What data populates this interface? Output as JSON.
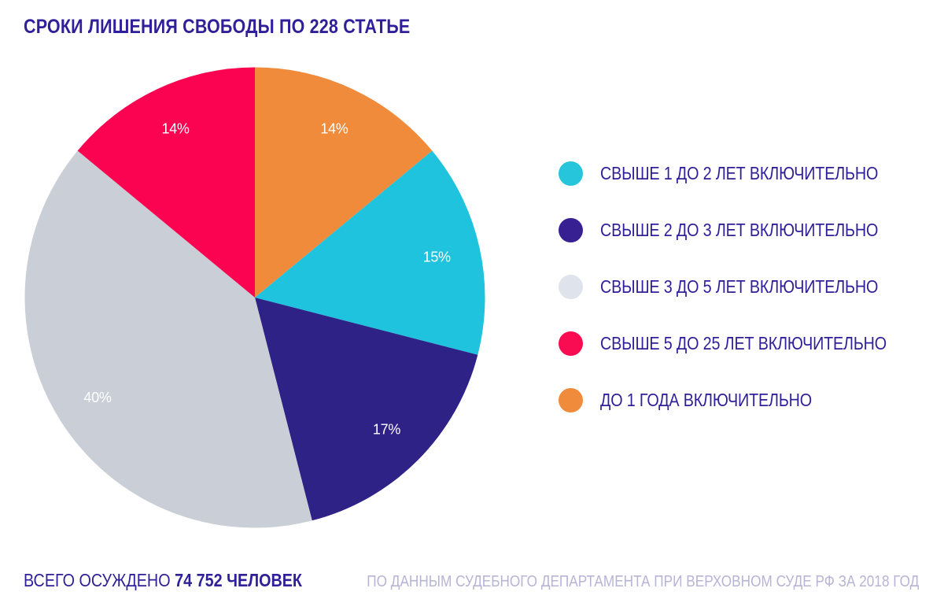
{
  "title": "СРОКИ ЛИШЕНИЯ СВОБОДЫ ПО 228 СТАТЬЕ",
  "chart_data": {
    "type": "pie",
    "title": "СРОКИ ЛИШЕНИЯ СВОБОДЫ ПО 228 СТАТЬЕ",
    "start_angle_deg": 0,
    "direction": "clockwise",
    "units": "%",
    "slices": [
      {
        "label": "ДО 1 ГОДА ВКЛЮЧИТЕЛЬНО",
        "value": 14,
        "display": "14%",
        "color": "#ef8b3b"
      },
      {
        "label": "СВЫШЕ 1 ДО 2 ЛЕТ ВКЛЮЧИТЕЛЬНО",
        "value": 15,
        "display": "15%",
        "color": "#20c3dd"
      },
      {
        "label": "СВЫШЕ 2 ДО 3 ЛЕТ ВКЛЮЧИТЕЛЬНО",
        "value": 17,
        "display": "17%",
        "color": "#2e2286"
      },
      {
        "label": "СВЫШЕ 3 ДО 5 ЛЕТ ВКЛЮЧИТЕЛЬНО",
        "value": 40,
        "display": "40%",
        "color": "#c9ced7"
      },
      {
        "label": "СВЫШЕ 5 ДО 25 ЛЕТ ВКЛЮЧИТЕЛЬНО",
        "value": 14,
        "display": "14%",
        "color": "#fb0351"
      }
    ],
    "slice_label_color": "#ffffff",
    "slice_label_radius_ratio": 0.81,
    "legend_position": "right"
  },
  "legend": {
    "items": [
      {
        "label": "СВЫШЕ 1 ДО 2 ЛЕТ ВКЛЮЧИТЕЛЬНО",
        "color": "#26c5dc"
      },
      {
        "label": "СВЫШЕ 2 ДО 3 ЛЕТ ВКЛЮЧИТЕЛЬНО",
        "color": "#362092"
      },
      {
        "label": "СВЫШЕ 3 ДО 5 ЛЕТ ВКЛЮЧИТЕЛЬНО",
        "color": "#dee3ec"
      },
      {
        "label": "СВЫШЕ 5 ДО 25 ЛЕТ ВКЛЮЧИТЕЛЬНО",
        "color": "#fa0c52"
      },
      {
        "label": "ДО 1 ГОДА ВКЛЮЧИТЕЛЬНО",
        "color": "#ef8b3b"
      }
    ]
  },
  "footer": {
    "total_prefix": "ВСЕГО ОСУЖДЕНО ",
    "total_bold": "74 752 ЧЕЛОВЕК",
    "source": "ПО ДАННЫМ СУДЕБНОГО ДЕПАРТАМЕНТА ПРИ ВЕРХОВНОМ СУДЕ РФ ЗА 2018 ГОД"
  },
  "colors": {
    "background": "#ffffff",
    "title_text": "#2f1f99",
    "legend_text": "#2f1f99",
    "source_text": "#b7b4d6"
  }
}
